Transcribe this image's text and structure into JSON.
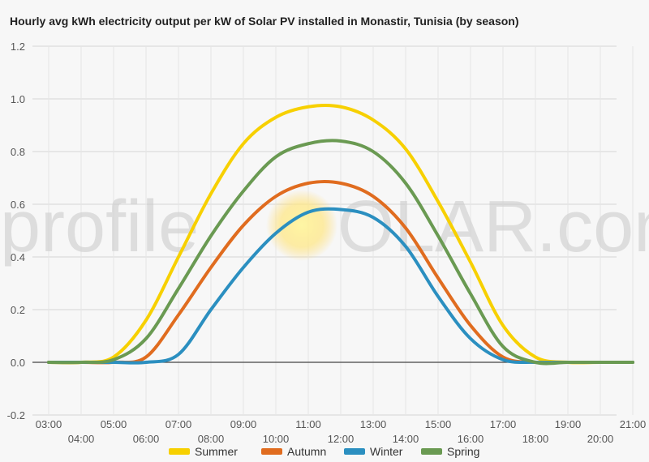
{
  "chart_data": {
    "type": "line",
    "title": "Hourly avg kWh electricity output per kW of Solar PV installed in Monastir, Tunisia (by season)",
    "watermark": "profileSOLAR.com",
    "xlabel": "",
    "ylabel": "",
    "ylim": [
      -0.2,
      1.2
    ],
    "yticks": [
      "-0.2",
      "0.0",
      "0.2",
      "0.4",
      "0.6",
      "0.8",
      "1.0",
      "1.2"
    ],
    "xlim": [
      3,
      21
    ],
    "xticks_upper": [
      "03:00",
      "05:00",
      "07:00",
      "09:00",
      "11:00",
      "13:00",
      "15:00",
      "17:00",
      "19:00",
      "21:00"
    ],
    "xticks_lower": [
      "04:00",
      "06:00",
      "08:00",
      "10:00",
      "12:00",
      "14:00",
      "16:00",
      "18:00",
      "20:00"
    ],
    "grid": true,
    "legend_position": "bottom",
    "x": [
      "03:00",
      "04:00",
      "05:00",
      "06:00",
      "07:00",
      "08:00",
      "09:00",
      "10:00",
      "11:00",
      "12:00",
      "13:00",
      "14:00",
      "15:00",
      "16:00",
      "17:00",
      "18:00",
      "19:00",
      "20:00",
      "21:00"
    ],
    "series": [
      {
        "name": "Summer",
        "color": "#f7d000",
        "values": [
          0,
          0,
          0.02,
          0.16,
          0.4,
          0.64,
          0.83,
          0.93,
          0.97,
          0.97,
          0.92,
          0.81,
          0.61,
          0.38,
          0.14,
          0.02,
          0,
          0,
          0
        ]
      },
      {
        "name": "Autumn",
        "color": "#e06c1f",
        "values": [
          0,
          0,
          0,
          0.02,
          0.18,
          0.36,
          0.52,
          0.63,
          0.68,
          0.68,
          0.63,
          0.51,
          0.32,
          0.14,
          0.02,
          0,
          0,
          0,
          0
        ]
      },
      {
        "name": "Winter",
        "color": "#2b8fc0",
        "values": [
          0,
          0,
          0,
          0,
          0.03,
          0.2,
          0.36,
          0.49,
          0.57,
          0.58,
          0.55,
          0.44,
          0.25,
          0.09,
          0.01,
          0,
          0,
          0,
          0
        ]
      },
      {
        "name": "Spring",
        "color": "#6a9a52",
        "values": [
          0,
          0,
          0.01,
          0.09,
          0.28,
          0.48,
          0.65,
          0.78,
          0.83,
          0.84,
          0.8,
          0.68,
          0.48,
          0.26,
          0.06,
          0,
          0,
          0,
          0
        ]
      }
    ]
  }
}
